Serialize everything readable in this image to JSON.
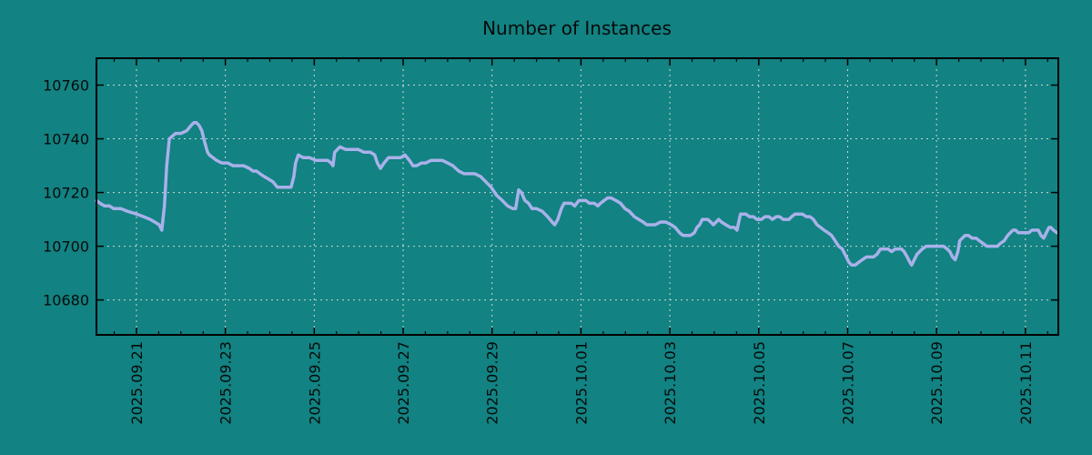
{
  "chart_data": {
    "type": "line",
    "title": "Number of Instances",
    "legend": "none",
    "grid": true,
    "colors": {
      "background": "#128282",
      "line": "#a9b1ea",
      "grid": "#c8d8d4",
      "axis": "#000000",
      "text": "#060a0a"
    },
    "x_axis": {
      "label": "",
      "unit": "days since 2025-09-20 00:00",
      "range": [
        0.1,
        21.74
      ],
      "minor_tick_step": 0.5,
      "major_ticks": [
        {
          "day": 1,
          "label": "2025.09.21"
        },
        {
          "day": 3,
          "label": "2025.09.23"
        },
        {
          "day": 5,
          "label": "2025.09.25"
        },
        {
          "day": 7,
          "label": "2025.09.27"
        },
        {
          "day": 9,
          "label": "2025.09.29"
        },
        {
          "day": 11,
          "label": "2025.10.01"
        },
        {
          "day": 13,
          "label": "2025.10.03"
        },
        {
          "day": 15,
          "label": "2025.10.05"
        },
        {
          "day": 17,
          "label": "2025.10.07"
        },
        {
          "day": 19,
          "label": "2025.10.09"
        },
        {
          "day": 21,
          "label": "2025.10.11"
        }
      ]
    },
    "y_axis": {
      "label": "",
      "range": [
        10667,
        10770
      ],
      "ticks": [
        10760,
        10740,
        10720,
        10700,
        10680
      ]
    },
    "series": [
      {
        "name": "instances",
        "color": "#a9b1ea",
        "points": [
          [
            0.1,
            10717
          ],
          [
            0.18,
            10716
          ],
          [
            0.28,
            10715
          ],
          [
            0.39,
            10715
          ],
          [
            0.49,
            10714
          ],
          [
            0.65,
            10714
          ],
          [
            0.8,
            10713
          ],
          [
            1.0,
            10712
          ],
          [
            1.16,
            10711
          ],
          [
            1.31,
            10710
          ],
          [
            1.41,
            10709
          ],
          [
            1.51,
            10708
          ],
          [
            1.57,
            10706
          ],
          [
            1.63,
            10715
          ],
          [
            1.68,
            10730
          ],
          [
            1.74,
            10740
          ],
          [
            1.88,
            10742
          ],
          [
            2.0,
            10742
          ],
          [
            2.13,
            10743
          ],
          [
            2.23,
            10745
          ],
          [
            2.29,
            10746
          ],
          [
            2.35,
            10746
          ],
          [
            2.41,
            10745
          ],
          [
            2.47,
            10743
          ],
          [
            2.53,
            10739
          ],
          [
            2.6,
            10735
          ],
          [
            2.64,
            10734
          ],
          [
            2.72,
            10733
          ],
          [
            2.8,
            10732
          ],
          [
            2.92,
            10731
          ],
          [
            3.05,
            10731
          ],
          [
            3.17,
            10730
          ],
          [
            3.29,
            10730
          ],
          [
            3.41,
            10730
          ],
          [
            3.54,
            10729
          ],
          [
            3.62,
            10728
          ],
          [
            3.7,
            10728
          ],
          [
            3.78,
            10727
          ],
          [
            3.87,
            10726
          ],
          [
            3.97,
            10725
          ],
          [
            4.07,
            10724
          ],
          [
            4.17,
            10722
          ],
          [
            4.27,
            10722
          ],
          [
            4.38,
            10722
          ],
          [
            4.48,
            10722
          ],
          [
            4.54,
            10726
          ],
          [
            4.58,
            10731
          ],
          [
            4.64,
            10734
          ],
          [
            4.75,
            10733
          ],
          [
            4.89,
            10733
          ],
          [
            5.03,
            10732
          ],
          [
            5.16,
            10732
          ],
          [
            5.3,
            10732
          ],
          [
            5.38,
            10731
          ],
          [
            5.42,
            10730
          ],
          [
            5.46,
            10735
          ],
          [
            5.52,
            10736
          ],
          [
            5.58,
            10737
          ],
          [
            5.71,
            10736
          ],
          [
            5.85,
            10736
          ],
          [
            5.99,
            10736
          ],
          [
            6.12,
            10735
          ],
          [
            6.26,
            10735
          ],
          [
            6.36,
            10734
          ],
          [
            6.42,
            10731
          ],
          [
            6.49,
            10729
          ],
          [
            6.57,
            10731
          ],
          [
            6.67,
            10733
          ],
          [
            6.79,
            10733
          ],
          [
            6.94,
            10733
          ],
          [
            7.04,
            10734
          ],
          [
            7.14,
            10732
          ],
          [
            7.22,
            10730
          ],
          [
            7.3,
            10730
          ],
          [
            7.41,
            10731
          ],
          [
            7.51,
            10731
          ],
          [
            7.63,
            10732
          ],
          [
            7.76,
            10732
          ],
          [
            7.88,
            10732
          ],
          [
            8.0,
            10731
          ],
          [
            8.12,
            10730
          ],
          [
            8.25,
            10728
          ],
          [
            8.37,
            10727
          ],
          [
            8.49,
            10727
          ],
          [
            8.61,
            10727
          ],
          [
            8.74,
            10726
          ],
          [
            8.86,
            10724
          ],
          [
            8.98,
            10722
          ],
          [
            9.1,
            10719
          ],
          [
            9.23,
            10717
          ],
          [
            9.35,
            10715
          ],
          [
            9.47,
            10714
          ],
          [
            9.53,
            10714
          ],
          [
            9.6,
            10721
          ],
          [
            9.66,
            10720
          ],
          [
            9.74,
            10717
          ],
          [
            9.82,
            10716
          ],
          [
            9.9,
            10714
          ],
          [
            10.0,
            10714
          ],
          [
            10.13,
            10713
          ],
          [
            10.25,
            10711
          ],
          [
            10.35,
            10709
          ],
          [
            10.41,
            10708
          ],
          [
            10.48,
            10710
          ],
          [
            10.56,
            10714
          ],
          [
            10.62,
            10716
          ],
          [
            10.7,
            10716
          ],
          [
            10.78,
            10716
          ],
          [
            10.86,
            10715
          ],
          [
            10.95,
            10717
          ],
          [
            11.03,
            10717
          ],
          [
            11.11,
            10717
          ],
          [
            11.19,
            10716
          ],
          [
            11.3,
            10716
          ],
          [
            11.38,
            10715
          ],
          [
            11.44,
            10716
          ],
          [
            11.52,
            10717
          ],
          [
            11.6,
            10718
          ],
          [
            11.68,
            10718
          ],
          [
            11.79,
            10717
          ],
          [
            11.89,
            10716
          ],
          [
            11.99,
            10714
          ],
          [
            12.09,
            10713
          ],
          [
            12.2,
            10711
          ],
          [
            12.3,
            10710
          ],
          [
            12.4,
            10709
          ],
          [
            12.48,
            10708
          ],
          [
            12.56,
            10708
          ],
          [
            12.67,
            10708
          ],
          [
            12.79,
            10709
          ],
          [
            12.91,
            10709
          ],
          [
            13.03,
            10708
          ],
          [
            13.12,
            10707
          ],
          [
            13.22,
            10705
          ],
          [
            13.3,
            10704
          ],
          [
            13.38,
            10704
          ],
          [
            13.46,
            10704
          ],
          [
            13.55,
            10705
          ],
          [
            13.61,
            10707
          ],
          [
            13.67,
            10708
          ],
          [
            13.73,
            10710
          ],
          [
            13.79,
            10710
          ],
          [
            13.85,
            10710
          ],
          [
            13.92,
            10709
          ],
          [
            13.98,
            10708
          ],
          [
            14.04,
            10709
          ],
          [
            14.1,
            10710
          ],
          [
            14.16,
            10709
          ],
          [
            14.26,
            10708
          ],
          [
            14.36,
            10707
          ],
          [
            14.45,
            10707
          ],
          [
            14.51,
            10706
          ],
          [
            14.55,
            10709
          ],
          [
            14.59,
            10712
          ],
          [
            14.65,
            10712
          ],
          [
            14.71,
            10712
          ],
          [
            14.79,
            10711
          ],
          [
            14.88,
            10711
          ],
          [
            14.96,
            10710
          ],
          [
            15.06,
            10710
          ],
          [
            15.14,
            10711
          ],
          [
            15.23,
            10711
          ],
          [
            15.31,
            10710
          ],
          [
            15.39,
            10711
          ],
          [
            15.47,
            10711
          ],
          [
            15.55,
            10710
          ],
          [
            15.62,
            10710
          ],
          [
            15.68,
            10710
          ],
          [
            15.74,
            10711
          ],
          [
            15.82,
            10712
          ],
          [
            15.9,
            10712
          ],
          [
            15.98,
            10712
          ],
          [
            16.07,
            10711
          ],
          [
            16.15,
            10711
          ],
          [
            16.23,
            10710
          ],
          [
            16.31,
            10708
          ],
          [
            16.39,
            10707
          ],
          [
            16.47,
            10706
          ],
          [
            16.56,
            10705
          ],
          [
            16.64,
            10704
          ],
          [
            16.72,
            10702
          ],
          [
            16.8,
            10700
          ],
          [
            16.88,
            10699
          ],
          [
            16.97,
            10696
          ],
          [
            17.03,
            10694
          ],
          [
            17.09,
            10693
          ],
          [
            17.17,
            10693
          ],
          [
            17.25,
            10694
          ],
          [
            17.33,
            10695
          ],
          [
            17.42,
            10696
          ],
          [
            17.5,
            10696
          ],
          [
            17.58,
            10696
          ],
          [
            17.66,
            10697
          ],
          [
            17.74,
            10699
          ],
          [
            17.82,
            10699
          ],
          [
            17.91,
            10699
          ],
          [
            17.99,
            10698
          ],
          [
            18.07,
            10699
          ],
          [
            18.15,
            10699
          ],
          [
            18.21,
            10699
          ],
          [
            18.27,
            10698
          ],
          [
            18.34,
            10696
          ],
          [
            18.4,
            10694
          ],
          [
            18.44,
            10693
          ],
          [
            18.5,
            10695
          ],
          [
            18.56,
            10697
          ],
          [
            18.62,
            10698
          ],
          [
            18.68,
            10699
          ],
          [
            18.77,
            10700
          ],
          [
            18.87,
            10700
          ],
          [
            18.97,
            10700
          ],
          [
            19.07,
            10700
          ],
          [
            19.16,
            10700
          ],
          [
            19.24,
            10699
          ],
          [
            19.3,
            10698
          ],
          [
            19.36,
            10696
          ],
          [
            19.42,
            10695
          ],
          [
            19.48,
            10698
          ],
          [
            19.52,
            10702
          ],
          [
            19.58,
            10703
          ],
          [
            19.64,
            10704
          ],
          [
            19.72,
            10704
          ],
          [
            19.8,
            10703
          ],
          [
            19.89,
            10703
          ],
          [
            19.97,
            10702
          ],
          [
            20.05,
            10701
          ],
          [
            20.13,
            10700
          ],
          [
            20.21,
            10700
          ],
          [
            20.29,
            10700
          ],
          [
            20.37,
            10700
          ],
          [
            20.43,
            10701
          ],
          [
            20.52,
            10702
          ],
          [
            20.6,
            10704
          ],
          [
            20.66,
            10705
          ],
          [
            20.72,
            10706
          ],
          [
            20.78,
            10706
          ],
          [
            20.84,
            10705
          ],
          [
            20.93,
            10705
          ],
          [
            20.99,
            10705
          ],
          [
            21.07,
            10705
          ],
          [
            21.15,
            10706
          ],
          [
            21.23,
            10706
          ],
          [
            21.29,
            10706
          ],
          [
            21.35,
            10704
          ],
          [
            21.41,
            10703
          ],
          [
            21.47,
            10705
          ],
          [
            21.53,
            10707
          ],
          [
            21.57,
            10707
          ],
          [
            21.63,
            10706
          ],
          [
            21.71,
            10705
          ]
        ]
      }
    ]
  }
}
